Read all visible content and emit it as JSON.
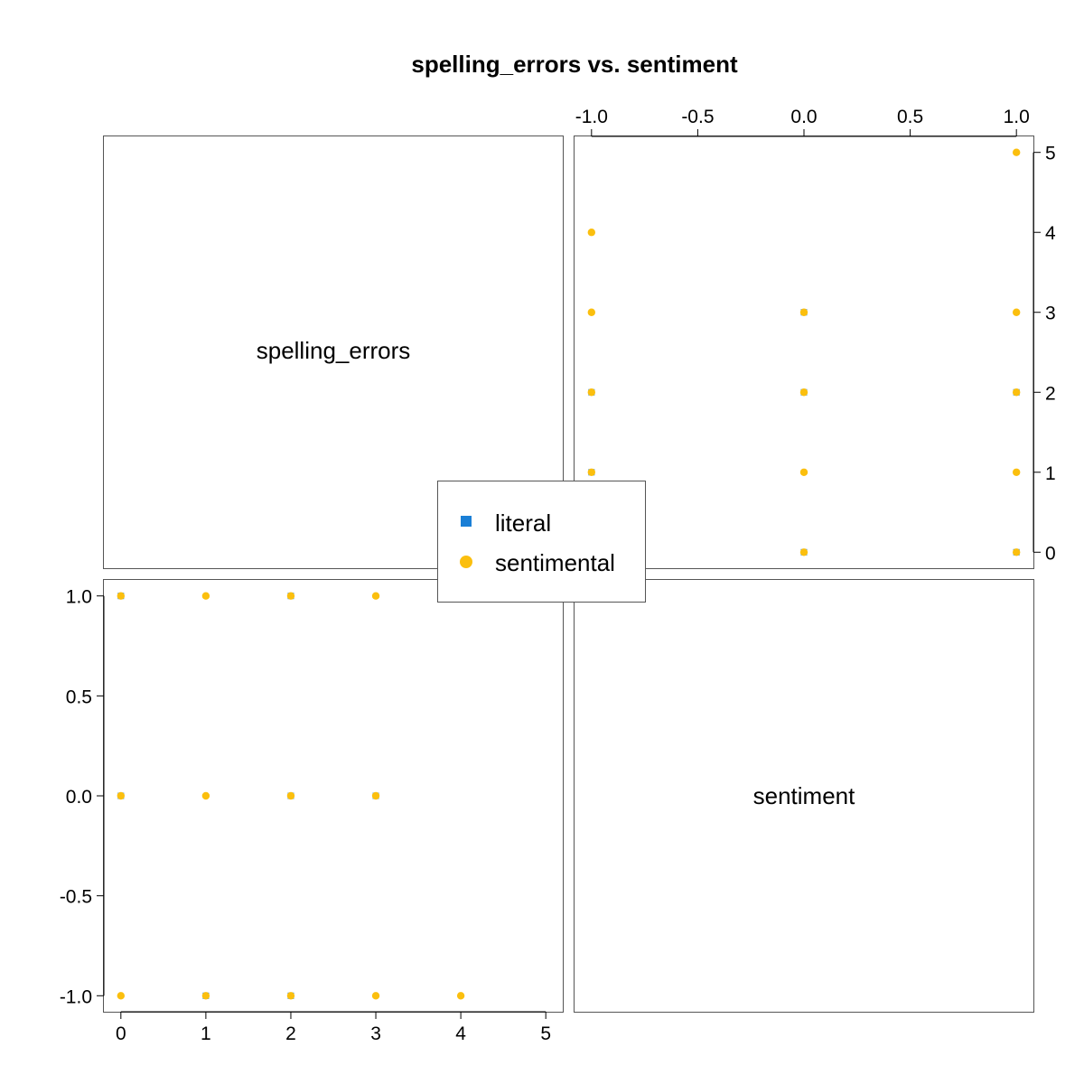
{
  "chart_data": {
    "type": "scatter",
    "title": "spelling_errors vs. sentiment",
    "variables": [
      "spelling_errors",
      "sentiment"
    ],
    "legend": {
      "placement": "center",
      "entries": [
        {
          "name": "literal",
          "marker": "square",
          "color": "#1a7fd6"
        },
        {
          "name": "sentimental",
          "marker": "circle",
          "color": "#fbbf0e"
        }
      ]
    },
    "axes": {
      "spelling_errors": {
        "range": [
          -0.2,
          5.2
        ],
        "ticks": [
          0,
          1,
          2,
          3,
          4,
          5
        ],
        "tick_labels": [
          "0",
          "1",
          "2",
          "3",
          "4",
          "5"
        ]
      },
      "sentiment": {
        "range": [
          -1.08,
          1.08
        ],
        "ticks": [
          -1,
          -0.5,
          0,
          0.5,
          1
        ],
        "tick_labels": [
          "-1.0",
          "-0.5",
          "0.0",
          "0.5",
          "1.0"
        ]
      }
    },
    "series": [
      {
        "name": "literal",
        "points": [
          {
            "spelling_errors": 0,
            "sentiment": 1
          },
          {
            "spelling_errors": 2,
            "sentiment": 1
          },
          {
            "spelling_errors": 0,
            "sentiment": 0
          },
          {
            "spelling_errors": 2,
            "sentiment": 0
          },
          {
            "spelling_errors": 3,
            "sentiment": 0
          },
          {
            "spelling_errors": 1,
            "sentiment": -1
          },
          {
            "spelling_errors": 2,
            "sentiment": -1
          }
        ]
      },
      {
        "name": "sentimental",
        "points": [
          {
            "spelling_errors": 0,
            "sentiment": 1
          },
          {
            "spelling_errors": 1,
            "sentiment": 1
          },
          {
            "spelling_errors": 2,
            "sentiment": 1
          },
          {
            "spelling_errors": 3,
            "sentiment": 1
          },
          {
            "spelling_errors": 5,
            "sentiment": 1
          },
          {
            "spelling_errors": 0,
            "sentiment": 0
          },
          {
            "spelling_errors": 1,
            "sentiment": 0
          },
          {
            "spelling_errors": 2,
            "sentiment": 0
          },
          {
            "spelling_errors": 3,
            "sentiment": 0
          },
          {
            "spelling_errors": 0,
            "sentiment": -1
          },
          {
            "spelling_errors": 1,
            "sentiment": -1
          },
          {
            "spelling_errors": 2,
            "sentiment": -1
          },
          {
            "spelling_errors": 3,
            "sentiment": -1
          },
          {
            "spelling_errors": 4,
            "sentiment": -1
          }
        ]
      }
    ]
  }
}
